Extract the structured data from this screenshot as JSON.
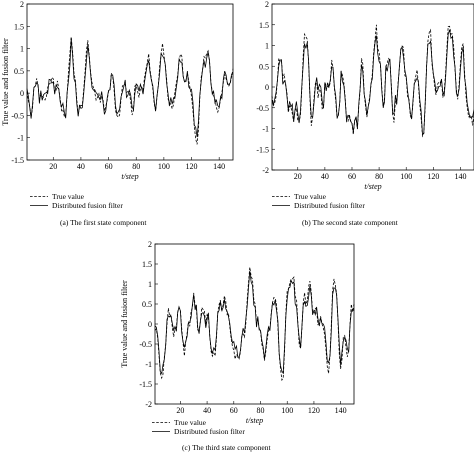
{
  "chart_data": [
    {
      "type": "line",
      "caption": "(a)  The first state component",
      "xlabel": "t/step",
      "ylabel": "True value and fusion filter",
      "xlim": [
        1,
        150
      ],
      "ylim": [
        -1.5,
        2
      ],
      "xticks": [
        "20",
        "40",
        "60",
        "80",
        "100",
        "120",
        "140"
      ],
      "yticks": [
        "-1.5",
        "-1",
        "-0.5",
        "0",
        "0.5",
        "1",
        "1.5",
        "2"
      ],
      "legend": [
        "True value",
        "Distributed fusion filter"
      ],
      "legend_placement": "below-left",
      "grid": false,
      "seed": 11,
      "series": [
        {
          "name": "True value",
          "style": "dashed"
        },
        {
          "name": "Distributed fusion filter",
          "style": "solid"
        }
      ]
    },
    {
      "type": "line",
      "caption": "(b)  The second state component",
      "xlabel": "t/step",
      "ylabel": "",
      "xlim": [
        1,
        150
      ],
      "ylim": [
        -2,
        2
      ],
      "xticks": [
        "20",
        "40",
        "60",
        "80",
        "100",
        "120",
        "140"
      ],
      "yticks": [
        "-2",
        "-1.5",
        "-1",
        "-0.5",
        "0",
        "0.5",
        "1",
        "1.5",
        "2"
      ],
      "legend": [
        "True value",
        "Distributed fusion filter"
      ],
      "legend_placement": "below-left",
      "grid": false,
      "seed": 23,
      "series": [
        {
          "name": "True value",
          "style": "dashed"
        },
        {
          "name": "Distributed fusion filter",
          "style": "solid"
        }
      ]
    },
    {
      "type": "line",
      "caption": "(c)  The third state component",
      "xlabel": "t/step",
      "ylabel": "True value and fusion filter",
      "xlim": [
        1,
        150
      ],
      "ylim": [
        -2,
        2
      ],
      "xticks": [
        "20",
        "40",
        "60",
        "80",
        "100",
        "120",
        "140"
      ],
      "yticks": [
        "-2",
        "-1.5",
        "-1",
        "-0.5",
        "0",
        "0.5",
        "1",
        "1.5",
        "2"
      ],
      "legend": [
        "True value",
        "Distributed fusion filter"
      ],
      "legend_placement": "below-left",
      "grid": false,
      "seed": 37,
      "series": [
        {
          "name": "True value",
          "style": "dashed"
        },
        {
          "name": "Distributed fusion filter",
          "style": "solid"
        }
      ]
    }
  ]
}
